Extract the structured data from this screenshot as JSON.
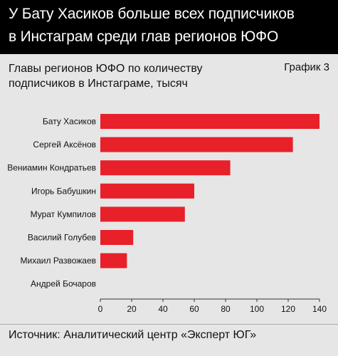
{
  "header": {
    "title_line1": "У Бату Хасиков больше всех подписчиков",
    "title_line2": "в Инстаграм среди глав регионов ЮФО"
  },
  "subtitle_line1": "Главы регионов ЮФО по количеству",
  "subtitle_line2": "подписчиков в Инстаграме, тысяч",
  "graph_label": "График 3",
  "footer": "Источник: Аналитический центр «Эксперт ЮГ»",
  "chart_data": {
    "type": "bar",
    "orientation": "horizontal",
    "categories": [
      "Бату Хасиков",
      "Сергей Аксёнов",
      "Вениамин Кондратьев",
      "Игорь Бабушкин",
      "Мурат Кумпилов",
      "Василий Голубев",
      "Михаил Развожаев",
      "Андрей Бочаров"
    ],
    "values": [
      140,
      123,
      83,
      60,
      54,
      21,
      17,
      0
    ],
    "xlim": [
      0,
      140
    ],
    "xticks": [
      "0",
      "20",
      "40",
      "60",
      "80",
      "100",
      "120",
      "140"
    ],
    "bar_color": "#e8202a",
    "grid": false
  }
}
